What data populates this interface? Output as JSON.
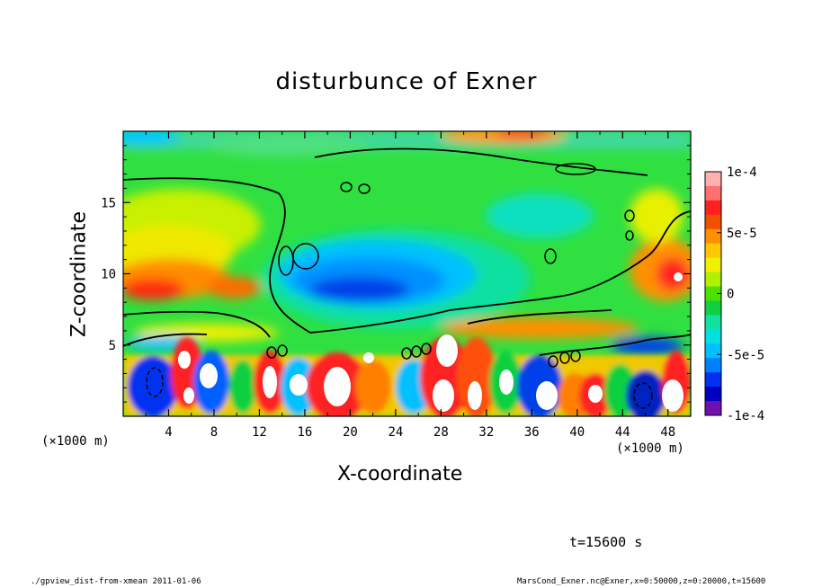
{
  "chart_data": {
    "type": "heatmap",
    "title": "disturbunce of Exner",
    "xlabel": "X-coordinate",
    "ylabel": "Z-coordinate",
    "x_unit": "(×1000 m)",
    "xlim": [
      0,
      50
    ],
    "ylim": [
      0,
      20
    ],
    "x_ticks": [
      4,
      8,
      12,
      16,
      20,
      24,
      28,
      32,
      36,
      40,
      44,
      48
    ],
    "y_ticks": [
      5,
      10,
      15
    ],
    "colorbar": {
      "ticks": [
        "1e-4",
        "5e-5",
        "0",
        "-5e-5",
        "-1e-4"
      ],
      "tick_values": [
        0.0001,
        5e-05,
        0,
        -5e-05,
        -0.0001
      ],
      "colors": [
        "#ffb0b0",
        "#ff7070",
        "#ff2020",
        "#f05000",
        "#ff9000",
        "#ffc800",
        "#f0f000",
        "#b0f000",
        "#50e000",
        "#10d040",
        "#10e0a0",
        "#00e0e0",
        "#00c0ff",
        "#0080ff",
        "#0030f0",
        "#0000c0",
        "#7010b0"
      ]
    },
    "annotations": {
      "time": "t=15600 s",
      "footer_left": "./gpview_dist-from-xmean  2011-01-06",
      "footer_right": "MarsCond_Exner.nc@Exner,x=0:50000,z=0:20000,t=15600"
    }
  }
}
